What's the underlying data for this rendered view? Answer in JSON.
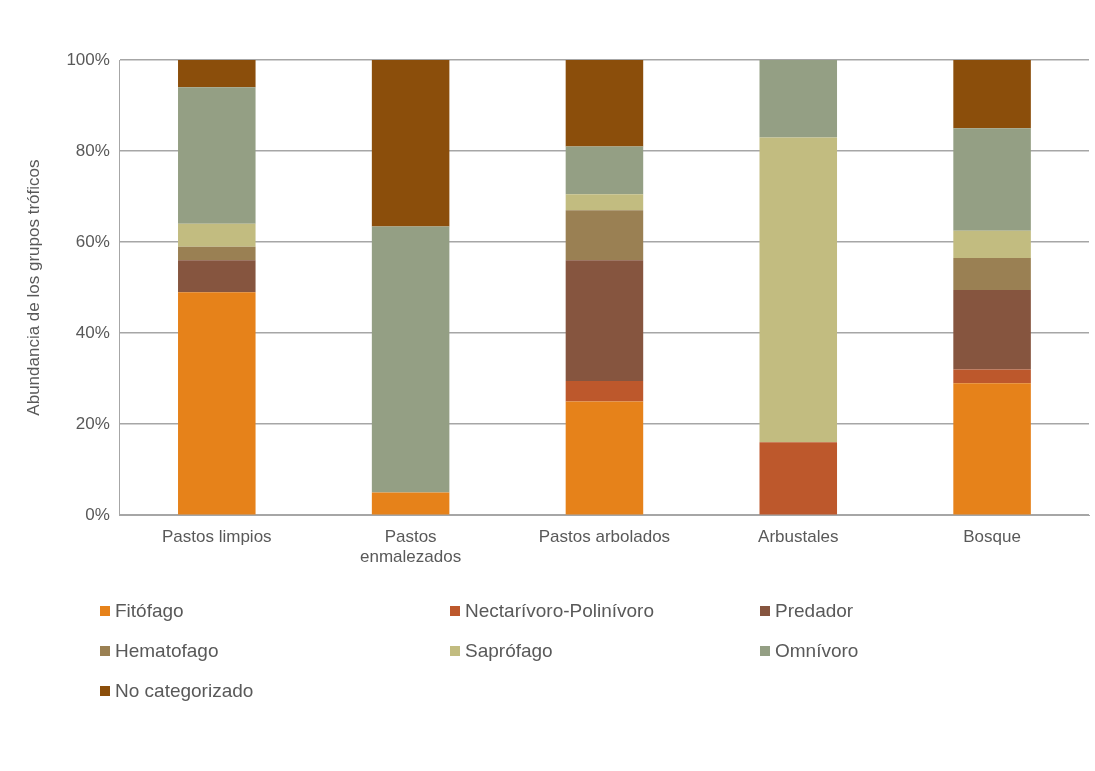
{
  "chart_data": {
    "type": "bar",
    "stacked": true,
    "ylabel": "Abundancia de los grupos tróficos",
    "categories": [
      "Pastos limpios",
      "Pastos enmalezados",
      "Pastos arbolados",
      "Arbustales",
      "Bosque"
    ],
    "ylim": [
      0,
      100
    ],
    "yticks": [
      {
        "value": 0,
        "label": "0%"
      },
      {
        "value": 20,
        "label": "20%"
      },
      {
        "value": 40,
        "label": "40%"
      },
      {
        "value": 60,
        "label": "60%"
      },
      {
        "value": 80,
        "label": "80%"
      },
      {
        "value": 100,
        "label": "100%"
      }
    ],
    "grid": "y",
    "legend": "bottom",
    "series": [
      {
        "name": "Fitófago",
        "color": "#e6821a",
        "values": [
          49,
          5,
          25,
          0,
          29
        ]
      },
      {
        "name": "Nectarívoro-Polinívoro",
        "color": "#bd582c",
        "values": [
          0,
          0,
          4.5,
          16,
          3
        ]
      },
      {
        "name": "Predador",
        "color": "#86553f",
        "values": [
          7,
          0,
          26.5,
          0,
          17.5
        ]
      },
      {
        "name": "Hematofago",
        "color": "#9a8053",
        "values": [
          3,
          0,
          11,
          0,
          7
        ]
      },
      {
        "name": "Saprófago",
        "color": "#c2bc80",
        "values": [
          5,
          0,
          3.5,
          67,
          6
        ]
      },
      {
        "name": "Omnívoro",
        "color": "#949f84",
        "values": [
          30,
          58.4,
          10.5,
          17,
          22.5
        ]
      },
      {
        "name": "No categorizado",
        "color": "#8b4e0b",
        "values": [
          6,
          36.6,
          19,
          0,
          15
        ]
      }
    ]
  }
}
